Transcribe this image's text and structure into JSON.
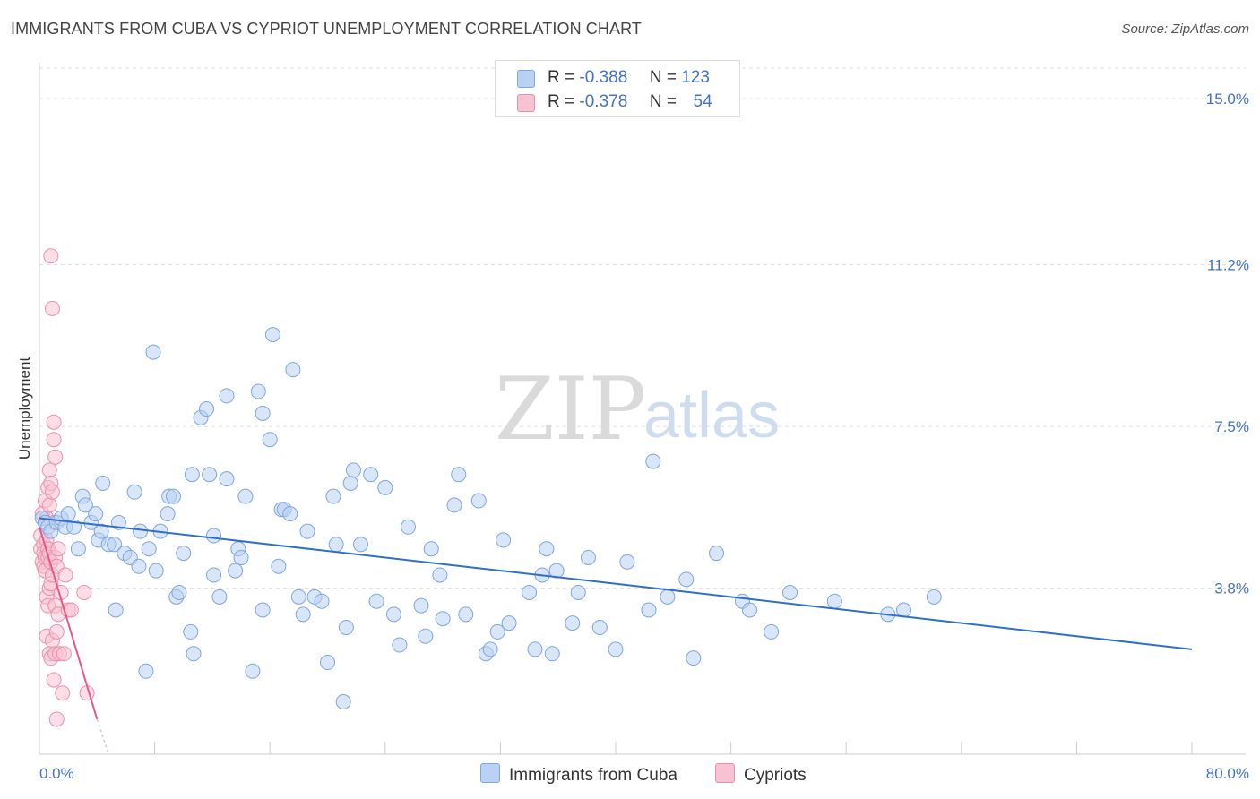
{
  "title": "IMMIGRANTS FROM CUBA VS CYPRIOT UNEMPLOYMENT CORRELATION CHART",
  "source": "Source: ZipAtlas.com",
  "watermark": {
    "zip": "ZIP",
    "atlas": "atlas"
  },
  "legend": {
    "rows": [
      {
        "r_label": "R =",
        "r_value": "-0.388",
        "n_label": "N =",
        "n_value": "123"
      },
      {
        "r_label": "R =",
        "r_value": "-0.378",
        "n_label": "N =",
        "n_value": "54"
      }
    ]
  },
  "colors": {
    "series1_fill": "#b9d2f3",
    "series1_stroke": "#7ea6df",
    "series1_line": "#2f6fca",
    "series2_fill": "#f7c2d2",
    "series2_stroke": "#ec8fae",
    "series2_line": "#e8588a",
    "tick_text": "#4472c4",
    "grid": "#dddddd"
  },
  "chart_data": {
    "type": "scatter",
    "title": "IMMIGRANTS FROM CUBA VS CYPRIOT UNEMPLOYMENT CORRELATION CHART",
    "xlabel": "",
    "ylabel": "Unemployment",
    "xlim": [
      0,
      80
    ],
    "ylim": [
      0,
      15.7
    ],
    "x_tick_labels": [
      "0.0%",
      "80.0%"
    ],
    "y_ticks": [
      3.8,
      7.5,
      11.2,
      15.0
    ],
    "y_tick_labels": [
      "3.8%",
      "7.5%",
      "11.2%",
      "15.0%"
    ],
    "grid": "horizontal dashed",
    "legend_position": "bottom",
    "series": [
      {
        "name": "Immigrants from Cuba",
        "r": -0.388,
        "n": 123,
        "trend": {
          "x0": 0,
          "y0": 5.4,
          "x1": 80,
          "y1": 2.4
        },
        "points": [
          [
            0.2,
            5.4
          ],
          [
            0.4,
            5.3
          ],
          [
            0.6,
            5.2
          ],
          [
            0.8,
            5.1
          ],
          [
            1.2,
            5.3
          ],
          [
            1.5,
            5.4
          ],
          [
            1.8,
            5.2
          ],
          [
            2.0,
            5.5
          ],
          [
            2.4,
            5.2
          ],
          [
            2.7,
            4.7
          ],
          [
            3.0,
            5.9
          ],
          [
            3.2,
            5.7
          ],
          [
            3.6,
            5.3
          ],
          [
            3.9,
            5.5
          ],
          [
            4.1,
            4.9
          ],
          [
            4.3,
            5.1
          ],
          [
            4.4,
            6.2
          ],
          [
            4.8,
            4.8
          ],
          [
            5.2,
            4.8
          ],
          [
            5.3,
            3.3
          ],
          [
            5.5,
            5.3
          ],
          [
            5.9,
            4.6
          ],
          [
            6.3,
            4.5
          ],
          [
            6.6,
            6.0
          ],
          [
            6.9,
            4.3
          ],
          [
            7.0,
            5.1
          ],
          [
            7.4,
            1.9
          ],
          [
            7.6,
            4.7
          ],
          [
            7.9,
            9.2
          ],
          [
            8.1,
            4.2
          ],
          [
            8.4,
            5.1
          ],
          [
            8.9,
            5.5
          ],
          [
            9.0,
            5.9
          ],
          [
            9.3,
            5.9
          ],
          [
            9.5,
            3.6
          ],
          [
            9.7,
            3.7
          ],
          [
            10.0,
            4.6
          ],
          [
            10.5,
            2.8
          ],
          [
            10.6,
            6.4
          ],
          [
            10.7,
            2.3
          ],
          [
            11.2,
            7.7
          ],
          [
            11.6,
            7.9
          ],
          [
            11.8,
            6.4
          ],
          [
            12.1,
            4.1
          ],
          [
            12.1,
            5.0
          ],
          [
            12.5,
            3.6
          ],
          [
            13.0,
            8.2
          ],
          [
            13.0,
            6.3
          ],
          [
            13.6,
            4.2
          ],
          [
            13.8,
            4.7
          ],
          [
            14.0,
            4.5
          ],
          [
            14.3,
            5.9
          ],
          [
            14.8,
            1.9
          ],
          [
            15.2,
            8.3
          ],
          [
            15.5,
            7.8
          ],
          [
            15.5,
            3.3
          ],
          [
            16.0,
            7.2
          ],
          [
            16.2,
            9.6
          ],
          [
            16.6,
            4.3
          ],
          [
            16.8,
            5.6
          ],
          [
            17.0,
            5.6
          ],
          [
            17.4,
            5.5
          ],
          [
            17.6,
            8.8
          ],
          [
            18.0,
            3.6
          ],
          [
            18.3,
            3.2
          ],
          [
            18.6,
            5.1
          ],
          [
            19.1,
            3.6
          ],
          [
            19.6,
            3.5
          ],
          [
            20.0,
            2.1
          ],
          [
            20.4,
            5.9
          ],
          [
            20.6,
            4.8
          ],
          [
            21.1,
            1.2
          ],
          [
            21.3,
            2.9
          ],
          [
            21.6,
            6.2
          ],
          [
            21.8,
            6.5
          ],
          [
            22.3,
            4.8
          ],
          [
            23.0,
            6.4
          ],
          [
            23.4,
            3.5
          ],
          [
            24.0,
            6.1
          ],
          [
            24.6,
            3.2
          ],
          [
            25.0,
            2.5
          ],
          [
            25.6,
            5.2
          ],
          [
            26.5,
            3.4
          ],
          [
            26.8,
            2.7
          ],
          [
            27.2,
            4.7
          ],
          [
            27.8,
            4.1
          ],
          [
            28.0,
            3.1
          ],
          [
            28.8,
            5.7
          ],
          [
            29.1,
            6.4
          ],
          [
            29.6,
            3.2
          ],
          [
            30.5,
            5.8
          ],
          [
            31.0,
            2.3
          ],
          [
            31.3,
            2.4
          ],
          [
            31.8,
            2.8
          ],
          [
            32.2,
            4.9
          ],
          [
            32.6,
            3.0
          ],
          [
            34.0,
            3.7
          ],
          [
            34.4,
            2.4
          ],
          [
            34.9,
            4.1
          ],
          [
            35.2,
            4.7
          ],
          [
            35.6,
            2.3
          ],
          [
            35.9,
            4.2
          ],
          [
            37.0,
            3.0
          ],
          [
            37.4,
            3.7
          ],
          [
            38.1,
            4.5
          ],
          [
            38.9,
            2.9
          ],
          [
            40.0,
            2.4
          ],
          [
            40.8,
            4.4
          ],
          [
            42.3,
            3.3
          ],
          [
            42.6,
            6.7
          ],
          [
            43.6,
            3.6
          ],
          [
            44.9,
            4.0
          ],
          [
            45.4,
            2.2
          ],
          [
            47.0,
            4.6
          ],
          [
            48.8,
            3.5
          ],
          [
            49.3,
            3.3
          ],
          [
            50.8,
            2.8
          ],
          [
            52.1,
            3.7
          ],
          [
            55.2,
            3.5
          ],
          [
            58.9,
            3.2
          ],
          [
            60.0,
            3.3
          ],
          [
            62.1,
            3.6
          ]
        ]
      },
      {
        "name": "Cypriots",
        "r": -0.378,
        "n": 54,
        "trend": {
          "x0": 0,
          "y0": 5.2,
          "x1": 4.0,
          "y1": 0.8
        },
        "trend_dashed_to": {
          "x": 4.8,
          "y": 0.0
        },
        "points": [
          [
            0.1,
            5.0
          ],
          [
            0.1,
            4.7
          ],
          [
            0.2,
            4.4
          ],
          [
            0.2,
            5.5
          ],
          [
            0.3,
            4.8
          ],
          [
            0.3,
            4.6
          ],
          [
            0.3,
            4.3
          ],
          [
            0.4,
            5.8
          ],
          [
            0.4,
            4.5
          ],
          [
            0.4,
            4.2
          ],
          [
            0.5,
            5.4
          ],
          [
            0.5,
            4.9
          ],
          [
            0.5,
            3.6
          ],
          [
            0.5,
            2.7
          ],
          [
            0.6,
            6.1
          ],
          [
            0.6,
            4.7
          ],
          [
            0.6,
            4.5
          ],
          [
            0.6,
            3.4
          ],
          [
            0.7,
            6.5
          ],
          [
            0.7,
            5.7
          ],
          [
            0.7,
            4.6
          ],
          [
            0.7,
            3.8
          ],
          [
            0.7,
            2.3
          ],
          [
            0.8,
            11.4
          ],
          [
            0.8,
            6.2
          ],
          [
            0.8,
            4.4
          ],
          [
            0.8,
            3.9
          ],
          [
            0.8,
            2.2
          ],
          [
            0.9,
            10.2
          ],
          [
            0.9,
            6.0
          ],
          [
            0.9,
            4.1
          ],
          [
            0.9,
            2.6
          ],
          [
            1.0,
            7.6
          ],
          [
            1.0,
            7.2
          ],
          [
            1.0,
            5.3
          ],
          [
            1.0,
            1.7
          ],
          [
            1.1,
            6.8
          ],
          [
            1.1,
            4.5
          ],
          [
            1.1,
            3.4
          ],
          [
            1.1,
            2.3
          ],
          [
            1.2,
            4.3
          ],
          [
            1.2,
            2.8
          ],
          [
            1.2,
            0.8
          ],
          [
            1.3,
            4.7
          ],
          [
            1.3,
            3.2
          ],
          [
            1.4,
            2.3
          ],
          [
            1.5,
            3.7
          ],
          [
            1.6,
            1.4
          ],
          [
            1.7,
            2.3
          ],
          [
            1.8,
            4.1
          ],
          [
            2.0,
            3.3
          ],
          [
            2.2,
            3.3
          ],
          [
            3.1,
            3.7
          ],
          [
            3.3,
            1.4
          ]
        ]
      }
    ]
  },
  "bottom_legend": {
    "series1_label": "Immigrants from Cuba",
    "series2_label": "Cypriots"
  }
}
